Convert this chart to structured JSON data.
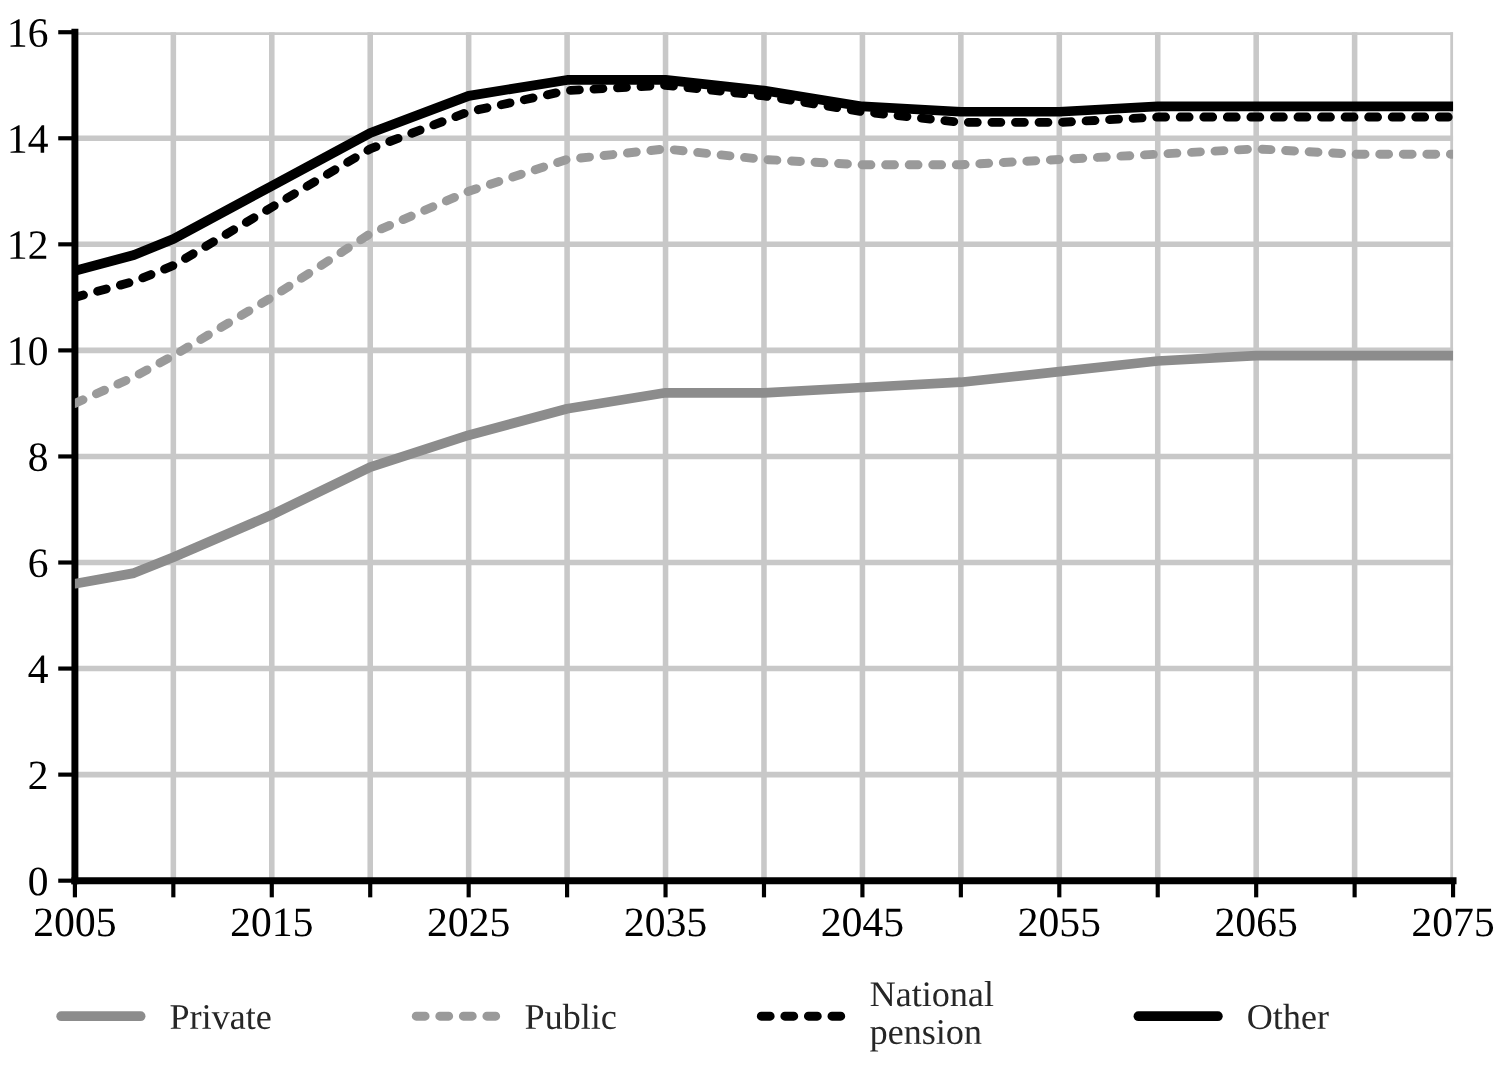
{
  "chart_data": {
    "type": "line",
    "x": [
      2005,
      2008,
      2010,
      2015,
      2020,
      2025,
      2030,
      2035,
      2040,
      2045,
      2050,
      2055,
      2060,
      2065,
      2070,
      2075
    ],
    "series": [
      {
        "name": "Private",
        "color": "#8c8c8c",
        "line_style": "solid",
        "values": [
          5.6,
          5.8,
          6.1,
          6.9,
          7.8,
          8.4,
          8.9,
          9.2,
          9.2,
          9.3,
          9.4,
          9.6,
          9.8,
          9.9,
          9.9,
          9.9
        ]
      },
      {
        "name": "Public",
        "color": "#9a9a9a",
        "line_style": "dotted",
        "values": [
          9.0,
          9.5,
          9.9,
          11.0,
          12.2,
          13.0,
          13.6,
          13.8,
          13.6,
          13.5,
          13.5,
          13.6,
          13.7,
          13.8,
          13.7,
          13.7
        ]
      },
      {
        "name": "National\npension",
        "color": "#000000",
        "line_style": "dotted",
        "values": [
          11.0,
          11.3,
          11.6,
          12.7,
          13.8,
          14.5,
          14.9,
          15.0,
          14.8,
          14.5,
          14.3,
          14.3,
          14.4,
          14.4,
          14.4,
          14.4
        ]
      },
      {
        "name": "Other",
        "color": "#000000",
        "line_style": "solid",
        "values": [
          11.5,
          11.8,
          12.1,
          13.1,
          14.1,
          14.8,
          15.1,
          15.1,
          14.9,
          14.6,
          14.5,
          14.5,
          14.6,
          14.6,
          14.6,
          14.6
        ]
      }
    ],
    "xlim": [
      2005,
      2075
    ],
    "xticks": [
      2005,
      {
        "value": 2010,
        "label": null
      },
      2015,
      {
        "value": 2020,
        "label": null
      },
      2025,
      {
        "value": 2030,
        "label": null
      },
      2035,
      {
        "value": 2040,
        "label": null
      },
      2045,
      {
        "value": 2050,
        "label": null
      },
      2055,
      {
        "value": 2060,
        "label": null
      },
      2065,
      {
        "value": 2070,
        "label": null
      },
      2075
    ],
    "ylim": [
      0,
      16
    ],
    "yticks": [
      0,
      2,
      4,
      6,
      8,
      10,
      12,
      14,
      16
    ],
    "grid": true,
    "legend": "bottom",
    "marker": "none"
  }
}
